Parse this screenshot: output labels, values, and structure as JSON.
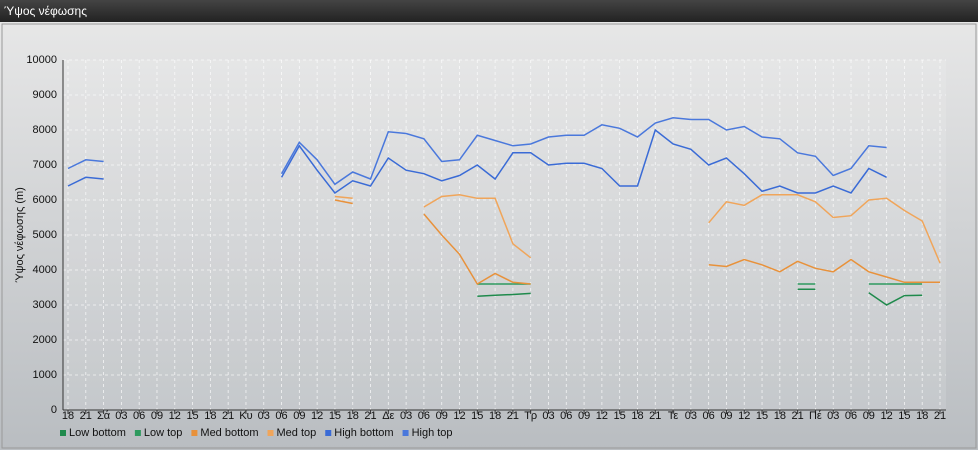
{
  "header": {
    "title": "Ύψος νέφωσης"
  },
  "chart_data": {
    "type": "line",
    "ylabel": "Ύψος νέφωσης (m)",
    "categories": [
      "18",
      "21",
      "Σά",
      "03",
      "06",
      "09",
      "12",
      "15",
      "18",
      "21",
      "Κυ",
      "03",
      "06",
      "09",
      "12",
      "15",
      "18",
      "21",
      "Δε",
      "03",
      "06",
      "09",
      "12",
      "15",
      "18",
      "21",
      "Τρ",
      "03",
      "06",
      "09",
      "12",
      "15",
      "18",
      "21",
      "Τε",
      "03",
      "06",
      "09",
      "12",
      "15",
      "18",
      "21",
      "Πέ",
      "03",
      "06",
      "09",
      "12",
      "15",
      "18",
      "21"
    ],
    "ylim": [
      0,
      10000
    ],
    "yticks": [
      0,
      1000,
      2000,
      3000,
      4000,
      5000,
      6000,
      7000,
      8000,
      9000,
      10000
    ],
    "grid": true,
    "legend": "bottom",
    "series": [
      {
        "name": "Low bottom",
        "color": "#1f8a4c",
        "values": [
          null,
          null,
          null,
          null,
          null,
          null,
          null,
          null,
          null,
          null,
          null,
          null,
          null,
          null,
          null,
          null,
          null,
          null,
          null,
          null,
          null,
          null,
          null,
          3250,
          3280,
          3300,
          3330,
          null,
          null,
          null,
          null,
          null,
          null,
          null,
          null,
          null,
          null,
          null,
          null,
          null,
          null,
          3450,
          3450,
          null,
          null,
          3350,
          3000,
          3270,
          3280,
          null
        ]
      },
      {
        "name": "Low top",
        "color": "#2e9a5e",
        "values": [
          null,
          null,
          null,
          null,
          null,
          null,
          null,
          null,
          null,
          null,
          null,
          null,
          null,
          null,
          null,
          null,
          null,
          null,
          null,
          null,
          null,
          null,
          null,
          3600,
          3600,
          3600,
          3600,
          null,
          null,
          null,
          null,
          null,
          null,
          null,
          null,
          null,
          null,
          null,
          null,
          null,
          null,
          3600,
          3600,
          null,
          null,
          3600,
          3600,
          3600,
          3600,
          null
        ]
      },
      {
        "name": "Med bottom",
        "color": "#e8913a",
        "values": [
          null,
          null,
          null,
          null,
          null,
          null,
          null,
          null,
          null,
          null,
          null,
          null,
          null,
          null,
          null,
          6000,
          5900,
          null,
          null,
          null,
          5600,
          5000,
          4450,
          3600,
          3900,
          3650,
          3600,
          null,
          null,
          null,
          null,
          null,
          null,
          null,
          null,
          null,
          4150,
          4100,
          4300,
          4150,
          3950,
          4250,
          4050,
          3950,
          4300,
          3950,
          3800,
          3650,
          3650,
          3650
        ]
      },
      {
        "name": "Med top",
        "color": "#f0a55a",
        "values": [
          null,
          null,
          null,
          null,
          null,
          null,
          null,
          null,
          null,
          null,
          null,
          null,
          null,
          null,
          null,
          6100,
          6050,
          null,
          null,
          null,
          5800,
          6100,
          6150,
          6050,
          6050,
          4750,
          4350,
          null,
          null,
          null,
          null,
          null,
          null,
          null,
          null,
          null,
          5350,
          5950,
          5850,
          6150,
          6150,
          6150,
          5950,
          5500,
          5550,
          6000,
          6050,
          5700,
          5400,
          4200
        ]
      },
      {
        "name": "High bottom",
        "color": "#3a6bd6",
        "values": [
          6400,
          6650,
          6600,
          null,
          null,
          null,
          null,
          null,
          null,
          null,
          null,
          null,
          6650,
          7550,
          6850,
          6200,
          6550,
          6400,
          7200,
          6850,
          6750,
          6550,
          6700,
          7000,
          6600,
          7350,
          7350,
          7000,
          7050,
          7050,
          6900,
          6400,
          6400,
          8000,
          7600,
          7450,
          7000,
          7200,
          6750,
          6250,
          6400,
          6200,
          6200,
          6400,
          6200,
          6900,
          6650,
          null,
          null,
          null
        ]
      },
      {
        "name": "High top",
        "color": "#4a78dc",
        "values": [
          6900,
          7150,
          7100,
          null,
          null,
          null,
          null,
          null,
          null,
          null,
          null,
          null,
          6750,
          7650,
          7150,
          6450,
          6800,
          6600,
          7950,
          7900,
          7750,
          7100,
          7150,
          7850,
          7700,
          7550,
          7600,
          7800,
          7850,
          7850,
          8150,
          8050,
          7800,
          8200,
          8350,
          8300,
          8300,
          8000,
          8100,
          7800,
          7750,
          7350,
          7250,
          6700,
          6900,
          7550,
          7500,
          null,
          null,
          null
        ]
      }
    ]
  }
}
